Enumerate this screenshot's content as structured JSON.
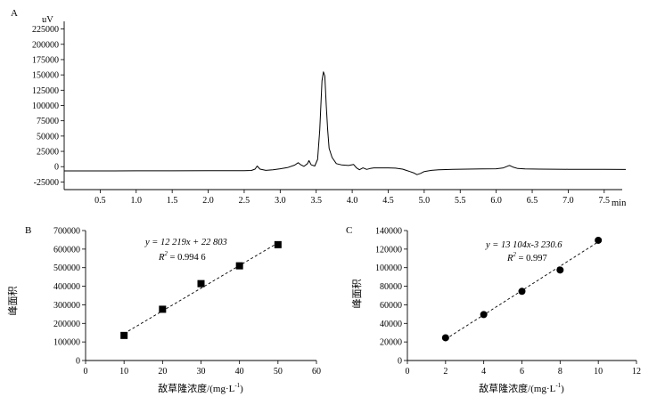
{
  "chart_data": [
    {
      "type": "line",
      "panel_label": "A",
      "y_unit": "uV",
      "x_unit": "min",
      "xlim": [
        0,
        7.75
      ],
      "ylim": [
        -37500,
        237500
      ],
      "x_ticks": [
        "0.5",
        "1.0",
        "1.5",
        "2.0",
        "2.5",
        "3.0",
        "3.5",
        "4.0",
        "4.5",
        "5.0",
        "5.5",
        "6.0",
        "6.5",
        "7.0",
        "7.5"
      ],
      "y_ticks": [
        "225000",
        "200000",
        "175000",
        "150000",
        "125000",
        "100000",
        "75000",
        "50000",
        "25000",
        "0",
        "-25000"
      ],
      "series": [
        {
          "x": [
            0.0,
            0.5,
            1.0,
            1.5,
            2.0,
            2.5,
            2.6,
            2.65,
            2.68,
            2.72,
            2.8,
            2.9,
            3.0,
            3.1,
            3.2,
            3.25,
            3.28,
            3.33,
            3.38,
            3.4,
            3.43,
            3.48,
            3.52,
            3.55,
            3.58,
            3.6,
            3.62,
            3.64,
            3.66,
            3.68,
            3.72,
            3.78,
            3.85,
            3.95,
            4.02,
            4.06,
            4.1,
            4.15,
            4.2,
            4.25,
            4.3,
            4.4,
            4.5,
            4.6,
            4.7,
            4.75,
            4.8,
            4.85,
            4.9,
            4.95,
            5.0,
            5.1,
            5.2,
            5.4,
            5.6,
            5.8,
            6.0,
            6.1,
            6.18,
            6.2,
            6.24,
            6.3,
            6.4,
            6.6,
            6.8,
            7.0,
            7.2,
            7.5,
            7.8
          ],
          "y": [
            -7000,
            -7000,
            -6800,
            -6800,
            -6600,
            -6500,
            -6200,
            -4000,
            1000,
            -4000,
            -6000,
            -5000,
            -3500,
            -1500,
            2500,
            6500,
            3500,
            500,
            5000,
            10000,
            3000,
            1000,
            12000,
            60000,
            140000,
            155000,
            148000,
            100000,
            60000,
            30000,
            15000,
            5000,
            3000,
            2000,
            3500,
            -2000,
            -5000,
            -2000,
            -4500,
            -3000,
            -2000,
            -2000,
            -2000,
            -2500,
            -4000,
            -6000,
            -8000,
            -10000,
            -13000,
            -11000,
            -8000,
            -6000,
            -5000,
            -4500,
            -4000,
            -3800,
            -3500,
            -2000,
            2000,
            1200,
            -1000,
            -3000,
            -3800,
            -4000,
            -4200,
            -4300,
            -4400,
            -4500,
            -4600
          ]
        }
      ]
    },
    {
      "type": "scatter",
      "panel_label": "B",
      "xlabel_cn": "敌草隆浓度/",
      "xlabel_unit": "(mg·L",
      "xlabel_sup": "-1",
      "xlabel_close": ")",
      "ylabel": "峰面积",
      "xlim": [
        0,
        60
      ],
      "ylim": [
        0,
        700000
      ],
      "x_ticks": [
        "0",
        "10",
        "20",
        "30",
        "40",
        "50",
        "60"
      ],
      "y_ticks": [
        "700000",
        "600000",
        "500000",
        "400000",
        "300000",
        "200000",
        "100000",
        "0"
      ],
      "marker": "square",
      "points": {
        "x": [
          10,
          20,
          30,
          40,
          50
        ],
        "y": [
          135000,
          276000,
          414000,
          510000,
          624000
        ]
      },
      "trendline": {
        "slope": 12219,
        "intercept": 22803
      },
      "equation": "y = 12 219x + 22 803",
      "r2_label": "R",
      "r2_sup": "2",
      "r2_value": " = 0.994 6"
    },
    {
      "type": "scatter",
      "panel_label": "C",
      "xlabel_cn": "敌草隆浓度/",
      "xlabel_unit": "(mg·L",
      "xlabel_sup": "-1",
      "xlabel_close": ")",
      "ylabel": "峰面积",
      "xlim": [
        0,
        12
      ],
      "ylim": [
        0,
        140000
      ],
      "x_ticks": [
        "0",
        "2",
        "4",
        "6",
        "8",
        "10",
        "12"
      ],
      "y_ticks": [
        "140000",
        "120000",
        "100000",
        "80000",
        "60000",
        "40000",
        "20000",
        "0"
      ],
      "marker": "circle",
      "points": {
        "x": [
          2,
          4,
          6,
          8,
          10
        ],
        "y": [
          24500,
          49500,
          74500,
          97500,
          129500
        ]
      },
      "trendline": {
        "slope": 13104,
        "intercept": -3230.6
      },
      "equation": "y = 13 104x-3 230.6",
      "r2_label": "R",
      "r2_sup": "2",
      "r2_value": " = 0.997"
    }
  ]
}
